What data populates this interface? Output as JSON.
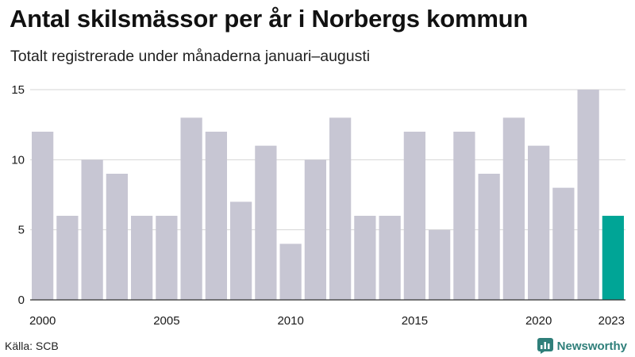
{
  "chart_data": {
    "type": "bar",
    "title": "Antal skilsmässor per år i Norbergs kommun",
    "subtitle": "Totalt registrerade under månaderna januari–augusti",
    "categories": [
      "2000",
      "2001",
      "2002",
      "2003",
      "2004",
      "2005",
      "2006",
      "2007",
      "2008",
      "2009",
      "2010",
      "2011",
      "2012",
      "2013",
      "2014",
      "2015",
      "2016",
      "2017",
      "2018",
      "2019",
      "2020",
      "2021",
      "2022",
      "2023"
    ],
    "values": [
      12,
      6,
      10,
      9,
      6,
      6,
      13,
      12,
      7,
      11,
      4,
      10,
      13,
      6,
      6,
      12,
      5,
      12,
      9,
      13,
      11,
      8,
      15,
      6
    ],
    "highlight": "2023",
    "x_tick_labels": [
      "2000",
      "2005",
      "2010",
      "2015",
      "2020",
      "2023"
    ],
    "y_ticks": [
      0,
      5,
      10,
      15
    ],
    "ylim": [
      0,
      15
    ],
    "xlabel": "",
    "ylabel": "",
    "grid": true,
    "colors": {
      "bar": "#c7c6d3",
      "highlight": "#00a596",
      "grid": "#d6d6d6",
      "axis": "#333333"
    }
  },
  "source": "Källa: SCB",
  "brand": {
    "name": "Newsworthy",
    "icon": "newsworthy-logo-icon"
  }
}
